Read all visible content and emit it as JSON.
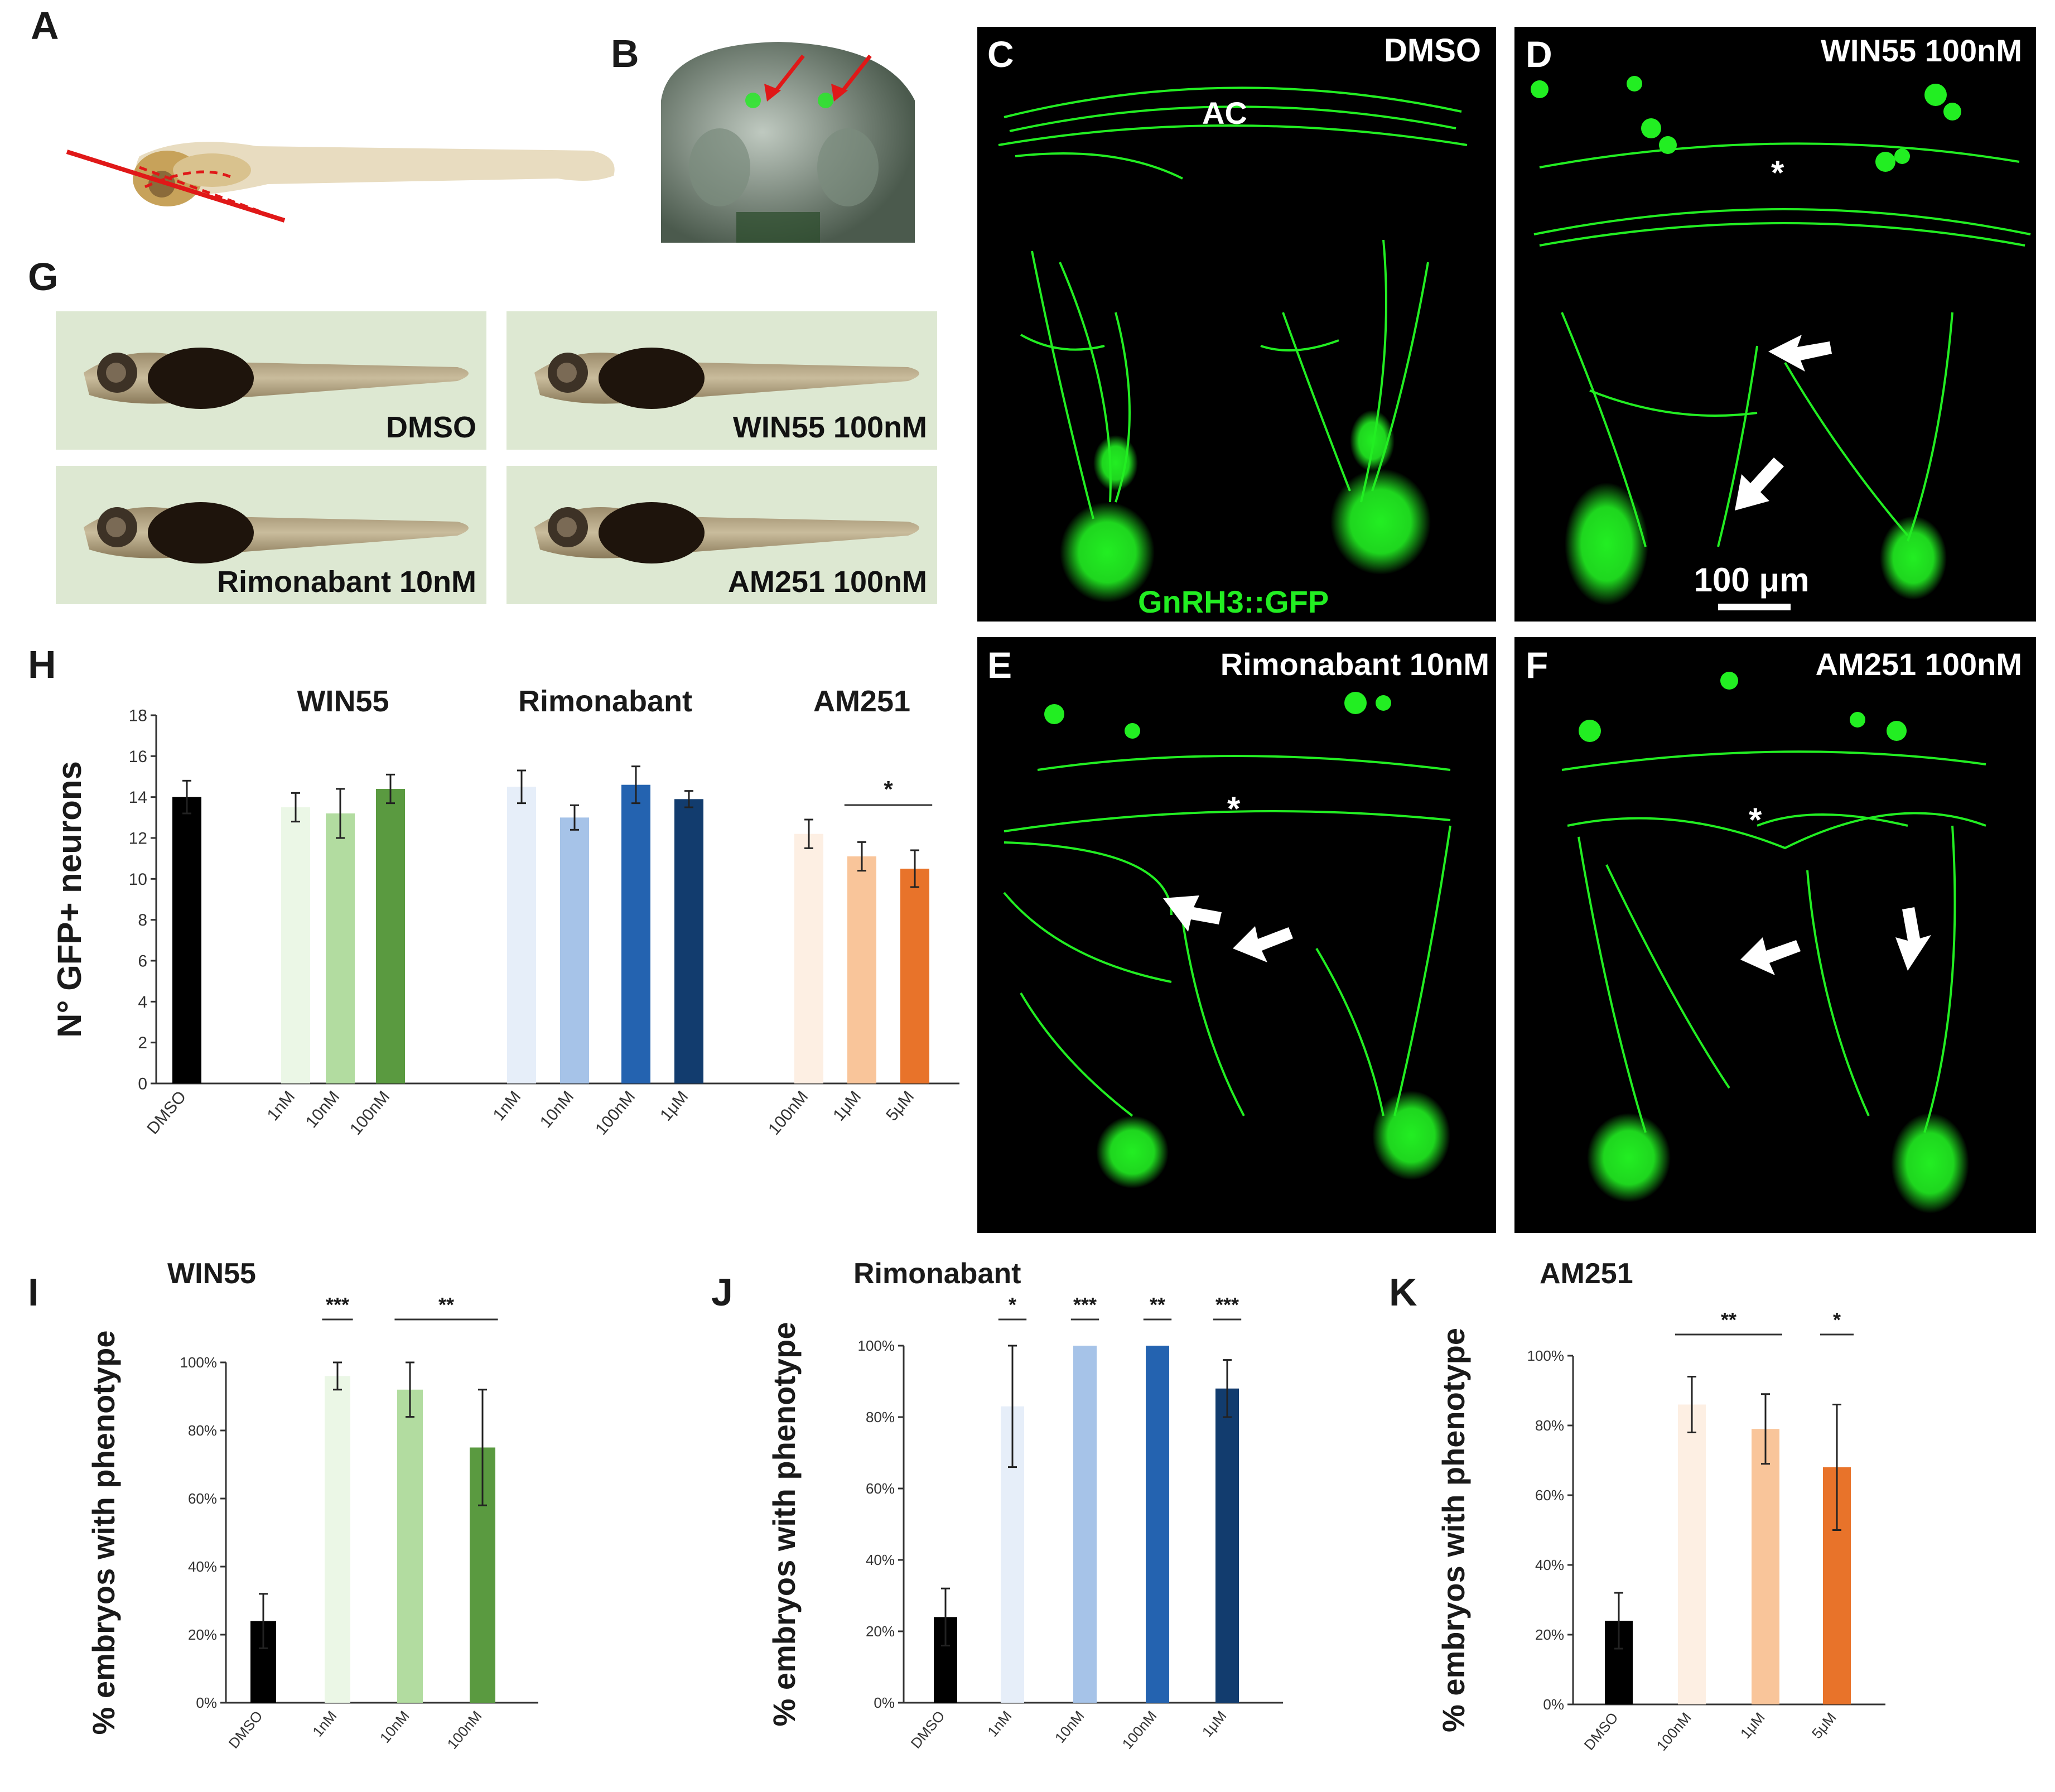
{
  "panel_letters": {
    "A": "A",
    "B": "B",
    "C": "C",
    "D": "D",
    "E": "E",
    "F": "F",
    "G": "G",
    "H": "H",
    "I": "I",
    "J": "J",
    "K": "K"
  },
  "micrographs": {
    "C": {
      "label": "DMSO",
      "structure": "AC",
      "reporter": "GnRH3::GFP"
    },
    "D": {
      "label": "WIN55 100nM",
      "star": "*",
      "scale_bar": "100 μm"
    },
    "E": {
      "label": "Rimonabant 10nM",
      "star": "*"
    },
    "F": {
      "label": "AM251 100nM",
      "star": "*"
    }
  },
  "larvae": [
    {
      "label": "DMSO"
    },
    {
      "label": "WIN55 100nM"
    },
    {
      "label": "Rimonabant 10nM"
    },
    {
      "label": "AM251 100nM"
    }
  ],
  "colors": {
    "gfp": "#22ee22",
    "dmso": "#000000",
    "win55": [
      "#ebf7e6",
      "#b2dca0",
      "#5a9a40"
    ],
    "rimonabant": [
      "#e6eef9",
      "#a6c3e8",
      "#2463b0",
      "#123c6e"
    ],
    "am251": [
      "#fdefe3",
      "#f9c59a",
      "#e8732a"
    ]
  },
  "chart_data": [
    {
      "id": "H",
      "type": "bar",
      "ylabel": "N° GFP+ neurons",
      "ylim": [
        0,
        18
      ],
      "yticks": [
        "0",
        "2",
        "4",
        "6",
        "8",
        "10",
        "12",
        "14",
        "16",
        "18"
      ],
      "group_titles": [
        "WIN55",
        "Rimonabant",
        "AM251"
      ],
      "categories": [
        "DMSO",
        "1nM",
        "10nM",
        "100nM",
        "1nM",
        "10nM",
        "100nM",
        "1μM",
        "100nM",
        "1μM",
        "5μM"
      ],
      "groups": [
        0,
        1,
        1,
        1,
        2,
        2,
        2,
        2,
        3,
        3,
        3
      ],
      "values": [
        14.0,
        13.5,
        13.2,
        14.4,
        14.5,
        13.0,
        14.6,
        13.9,
        12.2,
        11.1,
        10.5
      ],
      "errors": [
        0.8,
        0.7,
        1.2,
        0.7,
        0.8,
        0.6,
        0.9,
        0.4,
        0.7,
        0.7,
        0.9
      ],
      "significance": [
        {
          "from": 9,
          "to": 10,
          "label": "*"
        }
      ]
    },
    {
      "id": "I",
      "type": "bar",
      "title": "WIN55",
      "ylabel": "% embryos with phenotype",
      "ylim": [
        0,
        100
      ],
      "yticks": [
        "0%",
        "20%",
        "40%",
        "60%",
        "80%",
        "100%"
      ],
      "categories": [
        "DMSO",
        "1nM",
        "10nM",
        "100nM"
      ],
      "values": [
        24,
        96,
        92,
        75
      ],
      "errors": [
        8,
        4,
        8,
        17
      ],
      "significance": [
        {
          "from": 1,
          "to": 1,
          "label": "***"
        },
        {
          "from": 2,
          "to": 3,
          "label": "**"
        }
      ]
    },
    {
      "id": "J",
      "type": "bar",
      "title": "Rimonabant",
      "ylabel": "% embryos with phenotype",
      "ylim": [
        0,
        100
      ],
      "yticks": [
        "0%",
        "20%",
        "40%",
        "60%",
        "80%",
        "100%"
      ],
      "categories": [
        "DMSO",
        "1nM",
        "10nM",
        "100nM",
        "1μM"
      ],
      "values": [
        24,
        83,
        100,
        100,
        88
      ],
      "errors": [
        8,
        17,
        0,
        0,
        8
      ],
      "significance": [
        {
          "from": 1,
          "to": 1,
          "label": "*"
        },
        {
          "from": 2,
          "to": 2,
          "label": "***"
        },
        {
          "from": 3,
          "to": 3,
          "label": "**"
        },
        {
          "from": 4,
          "to": 4,
          "label": "***"
        }
      ]
    },
    {
      "id": "K",
      "type": "bar",
      "title": "AM251",
      "ylabel": "% embryos with phenotype",
      "ylim": [
        0,
        100
      ],
      "yticks": [
        "0%",
        "20%",
        "40%",
        "60%",
        "80%",
        "100%"
      ],
      "categories": [
        "DMSO",
        "100nM",
        "1μM",
        "5μM"
      ],
      "values": [
        24,
        86,
        79,
        68
      ],
      "errors": [
        8,
        8,
        10,
        18
      ],
      "significance": [
        {
          "from": 1,
          "to": 2,
          "label": "**"
        },
        {
          "from": 3,
          "to": 3,
          "label": "*"
        }
      ]
    }
  ]
}
